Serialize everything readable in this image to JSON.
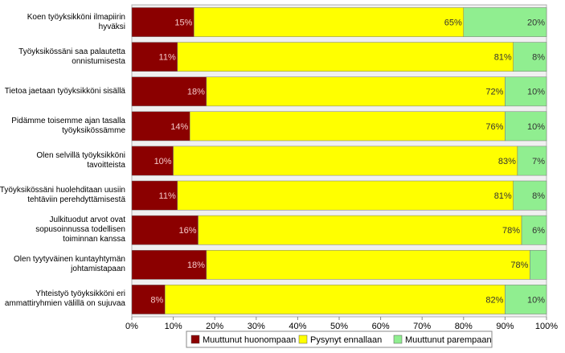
{
  "chart_data": {
    "type": "bar",
    "orientation": "horizontal",
    "stacked": true,
    "categories": [
      "Koen työyksikköni ilmapiirin\nhyväksi",
      "Työyksikössäni saa palautetta\nonnistumisesta",
      "Tietoa jaetaan työyksikköni sisällä",
      "Pidämme toisemme ajan tasalla\ntyöyksikössämme",
      "Olen selvillä työyksikköni\ntavoitteista",
      "Työyksikössäni huolehditaan uusiin\ntehtäviin perehdyttämisestä",
      "Julkituodut arvot ovat\nsopusoinnussa todellisen\ntoiminnan kanssa",
      "Olen tyytyväinen kuntayhtymän\njohtamistapaan",
      "Yhteistyö työyksikköni eri\nammattiryhmien välillä on sujuvaa"
    ],
    "series": [
      {
        "name": "Muuttunut huonompaan",
        "color": "#8b0000",
        "label_color": "#f4c8c8",
        "values": [
          15,
          11,
          18,
          14,
          10,
          11,
          16,
          18,
          8
        ],
        "value_labels": [
          "15%",
          "11%",
          "18%",
          "14%",
          "10%",
          "11%",
          "16%",
          "18%",
          "8%"
        ]
      },
      {
        "name": "Pysynyt ennallaan",
        "color": "#ffff00",
        "label_color": "#333333",
        "values": [
          65,
          81,
          72,
          76,
          83,
          81,
          78,
          78,
          82
        ],
        "value_labels": [
          "65%",
          "81%",
          "72%",
          "76%",
          "83%",
          "81%",
          "78%",
          "78%",
          "82%"
        ]
      },
      {
        "name": "Muuttunut parempaan",
        "color": "#90ee90",
        "label_color": "#333333",
        "values": [
          20,
          8,
          10,
          10,
          7,
          8,
          6,
          4,
          10
        ],
        "value_labels": [
          "20%",
          "8%",
          "10%",
          "10%",
          "7%",
          "8%",
          "6%",
          null,
          "10%"
        ]
      }
    ],
    "xlim": [
      0,
      100
    ],
    "xticks": [
      {
        "value": 0,
        "label": "0%"
      },
      {
        "value": 10,
        "label": "10%"
      },
      {
        "value": 20,
        "label": "20%"
      },
      {
        "value": 30,
        "label": "30%"
      },
      {
        "value": 40,
        "label": "40%"
      },
      {
        "value": 50,
        "label": "50%"
      },
      {
        "value": 60,
        "label": "60%"
      },
      {
        "value": 70,
        "label": "70%"
      },
      {
        "value": 80,
        "label": "80%"
      },
      {
        "value": 90,
        "label": "90%"
      },
      {
        "value": 100,
        "label": "100%"
      }
    ],
    "legend": "bottom"
  }
}
